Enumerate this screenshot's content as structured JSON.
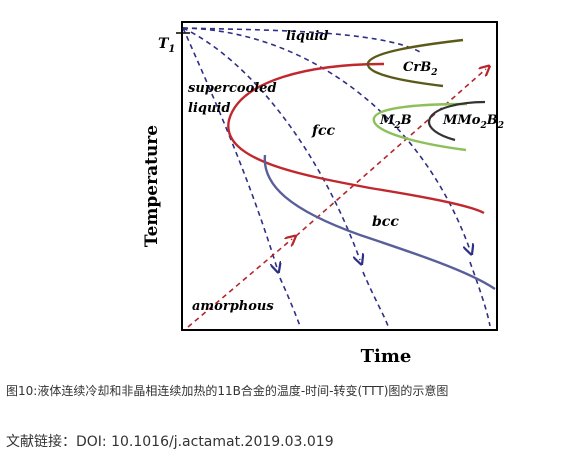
{
  "figure": {
    "y_axis_label": "Temperature",
    "x_axis_label": "Time",
    "t1_label": "T",
    "t1_subscript": "1",
    "regions": {
      "liquid": "liquid",
      "supercooled_line1": "supercooled",
      "supercooled_line2": "liquid",
      "fcc": "fcc",
      "bcc": "bcc",
      "amorphous": "amorphous"
    },
    "phase_labels": {
      "crb2_main": "CrB",
      "crb2_sub": "2",
      "m2b_main": "M",
      "m2b_sub": "2",
      "m2b_tail": "B",
      "mmo2b2_main": "MMo",
      "mmo2b2_sub1": "2",
      "mmo2b2_mid": "B",
      "mmo2b2_sub2": "2"
    },
    "curve_colors": {
      "fcc": "#c0282d",
      "bcc": "#5a5f9a",
      "crb2": "#5c5a1a",
      "m2b": "#8dc05a",
      "mmo2b2": "#333333",
      "cooling_paths": "#2e2f86",
      "heating_path": "#b5252a"
    }
  },
  "caption": "图10:液体连续冷却和非晶相连续加热的11B合金的温度-时间-转变(TTT)图的示意图",
  "reference": {
    "label": "文献链接：",
    "doi": "DOI: 10.1016/j.actamat.2019.03.019"
  }
}
